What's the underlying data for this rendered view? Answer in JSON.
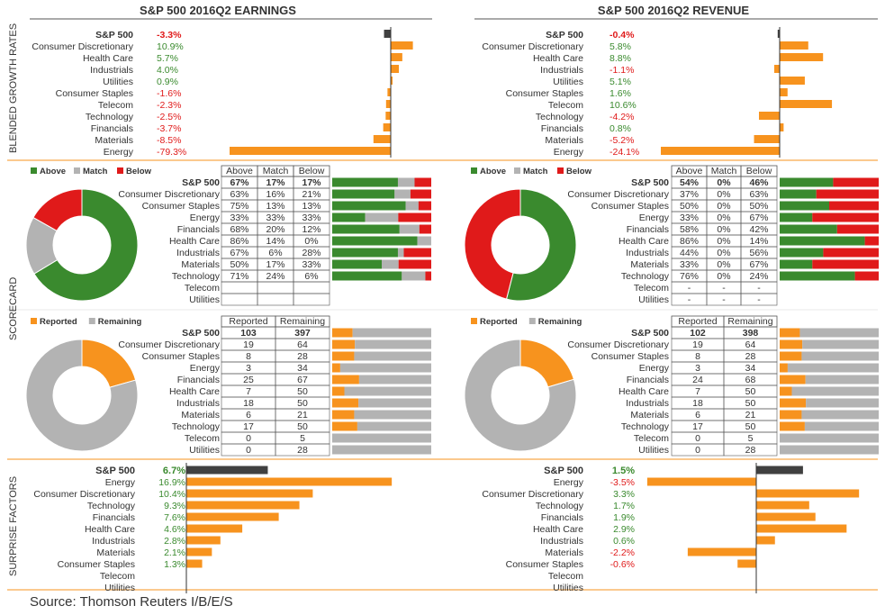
{
  "titles": {
    "earnings": "S&P 500 2016Q2 EARNINGS",
    "revenue": "S&P 500 2016Q2 REVENUE"
  },
  "section_labels": {
    "growth": "BLENDED GROWTH RATES",
    "scorecard": "SCORECARD",
    "surprise": "SURPRISE FACTORS"
  },
  "source": "Source: Thomson Reuters I/B/E/S",
  "colors": {
    "orange": "#f7931e",
    "dark": "#404040",
    "green": "#3a8a2e",
    "gray": "#b3b3b3",
    "red": "#e01a1a",
    "pos_text": "#3a8a2e",
    "neg_text": "#e01a1a",
    "rule": "#f7931e"
  },
  "legends": {
    "beat": [
      {
        "label": "Above",
        "color": "#3a8a2e"
      },
      {
        "label": "Match",
        "color": "#b3b3b3"
      },
      {
        "label": "Below",
        "color": "#e01a1a"
      }
    ],
    "reported": [
      {
        "label": "Reported",
        "color": "#f7931e"
      },
      {
        "label": "Remaining",
        "color": "#b3b3b3"
      }
    ]
  },
  "beat_headers": [
    "Above",
    "Match",
    "Below"
  ],
  "reported_headers": [
    "Reported",
    "Remaining"
  ],
  "chart_data": [
    {
      "id": "earnings_growth",
      "type": "bar",
      "title": "S&P 500 2016Q2 EARNINGS",
      "categories": [
        "S&P 500",
        "Consumer Discretionary",
        "Health Care",
        "Industrials",
        "Utilities",
        "Consumer Staples",
        "Telecom",
        "Technology",
        "Financials",
        "Materials",
        "Energy"
      ],
      "labels": [
        "-3.3%",
        "10.9%",
        "5.7%",
        "4.0%",
        "0.9%",
        "-1.6%",
        "-2.3%",
        "-2.5%",
        "-3.7%",
        "-8.5%",
        "-79.3%"
      ],
      "values": [
        -3.3,
        10.9,
        5.7,
        4.0,
        0.9,
        -1.6,
        -2.3,
        -2.5,
        -3.7,
        -8.5,
        -79.3
      ]
    },
    {
      "id": "revenue_growth",
      "type": "bar",
      "title": "S&P 500 2016Q2 REVENUE",
      "categories": [
        "S&P 500",
        "Consumer Discretionary",
        "Health Care",
        "Industrials",
        "Utilities",
        "Consumer Staples",
        "Telecom",
        "Technology",
        "Financials",
        "Materials",
        "Energy"
      ],
      "labels": [
        "-0.4%",
        "5.8%",
        "8.8%",
        "-1.1%",
        "5.1%",
        "1.6%",
        "10.6%",
        "-4.2%",
        "0.8%",
        "-5.2%",
        "-24.1%"
      ],
      "values": [
        -0.4,
        5.8,
        8.8,
        -1.1,
        5.1,
        1.6,
        10.6,
        -4.2,
        0.8,
        -5.2,
        -24.1
      ]
    },
    {
      "id": "earnings_beat",
      "type": "table",
      "categories": [
        "S&P 500",
        "Consumer Discretionary",
        "Consumer Staples",
        "Energy",
        "Financials",
        "Health Care",
        "Industrials",
        "Materials",
        "Technology",
        "Telecom",
        "Utilities"
      ],
      "labels": [
        [
          "67%",
          "17%",
          "17%"
        ],
        [
          "63%",
          "16%",
          "21%"
        ],
        [
          "75%",
          "13%",
          "13%"
        ],
        [
          "33%",
          "33%",
          "33%"
        ],
        [
          "68%",
          "20%",
          "12%"
        ],
        [
          "86%",
          "14%",
          "0%"
        ],
        [
          "67%",
          "6%",
          "28%"
        ],
        [
          "50%",
          "17%",
          "33%"
        ],
        [
          "71%",
          "24%",
          "6%"
        ],
        [
          "",
          "",
          ""
        ],
        [
          "",
          "",
          ""
        ]
      ],
      "values": [
        [
          67,
          17,
          17
        ],
        [
          63,
          16,
          21
        ],
        [
          75,
          13,
          13
        ],
        [
          33,
          33,
          33
        ],
        [
          68,
          20,
          12
        ],
        [
          86,
          14,
          0
        ],
        [
          67,
          6,
          28
        ],
        [
          50,
          17,
          33
        ],
        [
          71,
          24,
          6
        ],
        null,
        null
      ],
      "donut": [
        67,
        17,
        17
      ]
    },
    {
      "id": "revenue_beat",
      "type": "table",
      "categories": [
        "S&P 500",
        "Consumer Discretionary",
        "Consumer Staples",
        "Energy",
        "Financials",
        "Health Care",
        "Industrials",
        "Materials",
        "Technology",
        "Telecom",
        "Utilities"
      ],
      "labels": [
        [
          "54%",
          "0%",
          "46%"
        ],
        [
          "37%",
          "0%",
          "63%"
        ],
        [
          "50%",
          "0%",
          "50%"
        ],
        [
          "33%",
          "0%",
          "67%"
        ],
        [
          "58%",
          "0%",
          "42%"
        ],
        [
          "86%",
          "0%",
          "14%"
        ],
        [
          "44%",
          "0%",
          "56%"
        ],
        [
          "33%",
          "0%",
          "67%"
        ],
        [
          "76%",
          "0%",
          "24%"
        ],
        [
          "-",
          "-",
          "-"
        ],
        [
          "-",
          "-",
          "-"
        ]
      ],
      "values": [
        [
          54,
          0,
          46
        ],
        [
          37,
          0,
          63
        ],
        [
          50,
          0,
          50
        ],
        [
          33,
          0,
          67
        ],
        [
          58,
          0,
          42
        ],
        [
          86,
          0,
          14
        ],
        [
          44,
          0,
          56
        ],
        [
          33,
          0,
          67
        ],
        [
          76,
          0,
          24
        ],
        null,
        null
      ],
      "donut": [
        54,
        0,
        46
      ]
    },
    {
      "id": "earnings_reported",
      "type": "table",
      "categories": [
        "S&P 500",
        "Consumer Discretionary",
        "Consumer Staples",
        "Energy",
        "Financials",
        "Health Care",
        "Industrials",
        "Materials",
        "Technology",
        "Telecom",
        "Utilities"
      ],
      "labels": [
        [
          "103",
          "397"
        ],
        [
          "19",
          "64"
        ],
        [
          "8",
          "28"
        ],
        [
          "3",
          "34"
        ],
        [
          "25",
          "67"
        ],
        [
          "7",
          "50"
        ],
        [
          "18",
          "50"
        ],
        [
          "6",
          "21"
        ],
        [
          "17",
          "50"
        ],
        [
          "0",
          "5"
        ],
        [
          "0",
          "28"
        ]
      ],
      "values": [
        [
          103,
          397
        ],
        [
          19,
          64
        ],
        [
          8,
          28
        ],
        [
          3,
          34
        ],
        [
          25,
          67
        ],
        [
          7,
          50
        ],
        [
          18,
          50
        ],
        [
          6,
          21
        ],
        [
          17,
          50
        ],
        [
          0,
          5
        ],
        [
          0,
          28
        ]
      ]
    },
    {
      "id": "revenue_reported",
      "type": "table",
      "categories": [
        "S&P 500",
        "Consumer Discretionary",
        "Consumer Staples",
        "Energy",
        "Financials",
        "Health Care",
        "Industrials",
        "Materials",
        "Technology",
        "Telecom",
        "Utilities"
      ],
      "labels": [
        [
          "102",
          "398"
        ],
        [
          "19",
          "64"
        ],
        [
          "8",
          "28"
        ],
        [
          "3",
          "34"
        ],
        [
          "24",
          "68"
        ],
        [
          "7",
          "50"
        ],
        [
          "18",
          "50"
        ],
        [
          "6",
          "21"
        ],
        [
          "17",
          "50"
        ],
        [
          "0",
          "5"
        ],
        [
          "0",
          "28"
        ]
      ],
      "values": [
        [
          102,
          398
        ],
        [
          19,
          64
        ],
        [
          8,
          28
        ],
        [
          3,
          34
        ],
        [
          24,
          68
        ],
        [
          7,
          50
        ],
        [
          18,
          50
        ],
        [
          6,
          21
        ],
        [
          17,
          50
        ],
        [
          0,
          5
        ],
        [
          0,
          28
        ]
      ]
    },
    {
      "id": "earnings_surprise",
      "type": "bar",
      "categories": [
        "S&P 500",
        "Energy",
        "Consumer Discretionary",
        "Technology",
        "Financials",
        "Health Care",
        "Industrials",
        "Materials",
        "Consumer Staples",
        "Telecom",
        "Utilities"
      ],
      "labels": [
        "6.7%",
        "16.9%",
        "10.4%",
        "9.3%",
        "7.6%",
        "4.6%",
        "2.8%",
        "2.1%",
        "1.3%",
        "",
        ""
      ],
      "values": [
        6.7,
        16.9,
        10.4,
        9.3,
        7.6,
        4.6,
        2.8,
        2.1,
        1.3,
        null,
        null
      ]
    },
    {
      "id": "revenue_surprise",
      "type": "bar",
      "categories": [
        "S&P 500",
        "Energy",
        "Consumer Discretionary",
        "Technology",
        "Financials",
        "Health Care",
        "Industrials",
        "Materials",
        "Consumer Staples",
        "Telecom",
        "Utilities"
      ],
      "labels": [
        "1.5%",
        "-3.5%",
        "3.3%",
        "1.7%",
        "1.9%",
        "2.9%",
        "0.6%",
        "-2.2%",
        "-0.6%",
        "",
        ""
      ],
      "values": [
        1.5,
        -3.5,
        3.3,
        1.7,
        1.9,
        2.9,
        0.6,
        -2.2,
        -0.6,
        null,
        null
      ]
    }
  ]
}
